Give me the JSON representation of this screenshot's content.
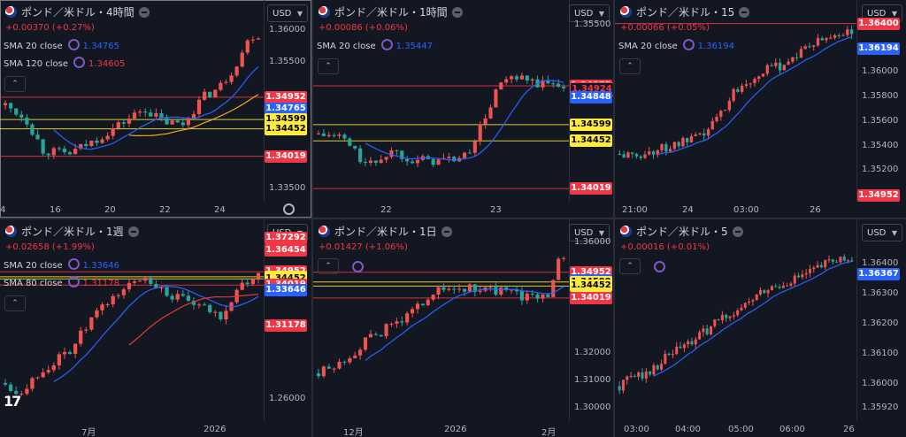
{
  "colors": {
    "up": "#26a69a",
    "down": "#ef5350",
    "sma_blue": "#2962ff",
    "sma_red": "#e53935",
    "line_red": "#f23645",
    "line_yellow": "#ffeb3b",
    "label_red": "#f23645",
    "label_yellow": "#ffeb3b",
    "label_blue": "#2962ff"
  },
  "panels": [
    {
      "title": "ポンド／米ドル・4時間",
      "change": "+0.00370 (+0.27%)",
      "change_color": "#f23645",
      "currency": "USD",
      "indicators": [
        {
          "label": "SMA 20 close",
          "value": "1.34765",
          "color": "#2962ff"
        },
        {
          "label": "SMA 120 close",
          "value": "1.34605",
          "color": "#f23645"
        }
      ],
      "yaxis": [
        {
          "label": "1.36000",
          "v": 1.36
        },
        {
          "label": "1.35500",
          "v": 1.355
        },
        {
          "label": "1.33500",
          "v": 1.335
        }
      ],
      "xaxis": [
        "4",
        "16",
        "20",
        "22",
        "24"
      ],
      "price_labels": [
        {
          "label": "1.34952",
          "v": 1.34952,
          "kind": "red"
        },
        {
          "label": "1.34765",
          "v": 1.34765,
          "kind": "blue"
        },
        {
          "label": "1.34605",
          "v": 1.34605,
          "kind": "red"
        },
        {
          "label": "1.34599",
          "v": 1.34599,
          "kind": "yellow"
        },
        {
          "label": "1.34452",
          "v": 1.34452,
          "kind": "yellow"
        },
        {
          "label": "1.34019",
          "v": 1.34019,
          "kind": "red"
        }
      ],
      "hlines": [
        {
          "v": 1.34952,
          "kind": "red"
        },
        {
          "v": 1.34599,
          "kind": "yellow"
        },
        {
          "v": 1.34452,
          "kind": "yellow"
        },
        {
          "v": 1.34019,
          "kind": "red"
        }
      ],
      "y_range": [
        1.333,
        1.3635
      ]
    },
    {
      "title": "ポンド／米ドル・1時間",
      "change": "+0.00086 (+0.06%)",
      "change_color": "#f23645",
      "currency": "USD",
      "indicators": [
        {
          "label": "SMA 20 close",
          "value": "1.35447",
          "color": "#2962ff"
        }
      ],
      "yaxis": [
        {
          "label": "1.35500",
          "v": 1.355
        }
      ],
      "xaxis": [
        "22",
        "23"
      ],
      "price_labels": [
        {
          "label": "1.34952",
          "v": 1.34952,
          "kind": "red"
        },
        {
          "label": "1.34924",
          "v": 1.34924,
          "kind": "dark"
        },
        {
          "label": "1.34848",
          "v": 1.34848,
          "kind": "blue"
        },
        {
          "label": "1.34599",
          "v": 1.34599,
          "kind": "yellow"
        },
        {
          "label": "1.34452",
          "v": 1.34452,
          "kind": "yellow"
        },
        {
          "label": "1.34019",
          "v": 1.34019,
          "kind": "red"
        }
      ],
      "hlines": [
        {
          "v": 1.34952,
          "kind": "red"
        },
        {
          "v": 1.34599,
          "kind": "yellow"
        },
        {
          "v": 1.34452,
          "kind": "yellow"
        },
        {
          "v": 1.34019,
          "kind": "red"
        }
      ],
      "y_range": [
        1.339,
        1.3565
      ]
    },
    {
      "title": "ポンド／米ドル・15",
      "change": "+0.00066 (+0.05%)",
      "change_color": "#f23645",
      "currency": "USD",
      "indicators": [
        {
          "label": "SMA 20 close",
          "value": "1.36194",
          "color": "#2962ff"
        }
      ],
      "yaxis": [
        {
          "label": "1.36000",
          "v": 1.36
        },
        {
          "label": "1.35800",
          "v": 1.358
        },
        {
          "label": "1.35600",
          "v": 1.356
        },
        {
          "label": "1.35400",
          "v": 1.354
        },
        {
          "label": "1.35200",
          "v": 1.352
        }
      ],
      "xaxis": [
        "21:00",
        "24",
        "03:00",
        "26"
      ],
      "price_labels": [
        {
          "label": "1.36400",
          "v": 1.364,
          "kind": "red"
        },
        {
          "label": "1.36194",
          "v": 1.36194,
          "kind": "blue"
        },
        {
          "label": "1.34952",
          "v": 1.34952,
          "kind": "red"
        }
      ],
      "hlines": [
        {
          "v": 1.364,
          "kind": "red"
        }
      ],
      "y_range": [
        1.3495,
        1.3652
      ]
    },
    {
      "title": "ポンド／米ドル・1週",
      "change": "+0.02658 (+1.99%)",
      "change_color": "#f23645",
      "currency": "USD",
      "indicators": [
        {
          "label": "SMA 20 close",
          "value": "1.33646",
          "color": "#2962ff"
        },
        {
          "label": "SMA 80 close",
          "value": "1.31178",
          "color": "#f23645"
        }
      ],
      "yaxis": [
        {
          "label": "1.26000",
          "v": 1.26
        }
      ],
      "xaxis": [
        "7月",
        "2026"
      ],
      "price_labels": [
        {
          "label": "1.37292",
          "v": 1.37292,
          "kind": "red"
        },
        {
          "label": "1.36454",
          "v": 1.36454,
          "kind": "red"
        },
        {
          "label": "1.34952",
          "v": 1.34952,
          "kind": "red"
        },
        {
          "label": "1.34599",
          "v": 1.34599,
          "kind": "yellow"
        },
        {
          "label": "1.34452",
          "v": 1.34452,
          "kind": "yellow"
        },
        {
          "label": "1.34019",
          "v": 1.34019,
          "kind": "red"
        },
        {
          "label": "1.33646",
          "v": 1.33646,
          "kind": "blue"
        },
        {
          "label": "1.31178",
          "v": 1.31178,
          "kind": "red"
        }
      ],
      "hlines": [
        {
          "v": 1.34952,
          "kind": "red"
        },
        {
          "v": 1.34599,
          "kind": "yellow"
        },
        {
          "v": 1.34452,
          "kind": "yellow"
        },
        {
          "v": 1.34019,
          "kind": "red"
        }
      ],
      "y_range": [
        1.245,
        1.38
      ]
    },
    {
      "title": "ポンド／米ドル・1日",
      "change": "+0.01427 (+1.06%)",
      "change_color": "#f23645",
      "currency": "USD",
      "indicators": [],
      "yaxis": [
        {
          "label": "1.36000",
          "v": 1.36
        },
        {
          "label": "1.32000",
          "v": 1.32
        },
        {
          "label": "1.31000",
          "v": 1.31
        },
        {
          "label": "1.30000",
          "v": 1.3
        }
      ],
      "xaxis": [
        "12月",
        "2026",
        "2月"
      ],
      "price_labels": [
        {
          "label": "1.34952",
          "v": 1.34952,
          "kind": "red"
        },
        {
          "label": "1.34653",
          "v": 1.34653,
          "kind": "blue"
        },
        {
          "label": "1.34599",
          "v": 1.34599,
          "kind": "yellow"
        },
        {
          "label": "1.34452",
          "v": 1.34452,
          "kind": "yellow"
        },
        {
          "label": "1.34019",
          "v": 1.34019,
          "kind": "red"
        }
      ],
      "hlines": [
        {
          "v": 1.34952,
          "kind": "red"
        },
        {
          "v": 1.34599,
          "kind": "yellow"
        },
        {
          "v": 1.34452,
          "kind": "yellow"
        },
        {
          "v": 1.34019,
          "kind": "red"
        }
      ],
      "y_range": [
        1.2955,
        1.3655
      ]
    },
    {
      "title": "ポンド／米ドル・5",
      "change": "+0.00016 (+0.01%)",
      "change_color": "#f23645",
      "currency": "USD",
      "indicators": [],
      "yaxis": [
        {
          "label": "1.36400",
          "v": 1.364
        },
        {
          "label": "1.36300",
          "v": 1.363
        },
        {
          "label": "1.36200",
          "v": 1.362
        },
        {
          "label": "1.36100",
          "v": 1.361
        },
        {
          "label": "1.36000",
          "v": 1.36
        },
        {
          "label": "1.35920",
          "v": 1.3592
        }
      ],
      "xaxis": [
        "03:00",
        "04:00",
        "05:00",
        "06:00",
        "26"
      ],
      "price_labels": [
        {
          "label": "1.36367",
          "v": 1.36367,
          "kind": "blue"
        }
      ],
      "hlines": [],
      "y_range": [
        1.3588,
        1.3652
      ]
    }
  ]
}
